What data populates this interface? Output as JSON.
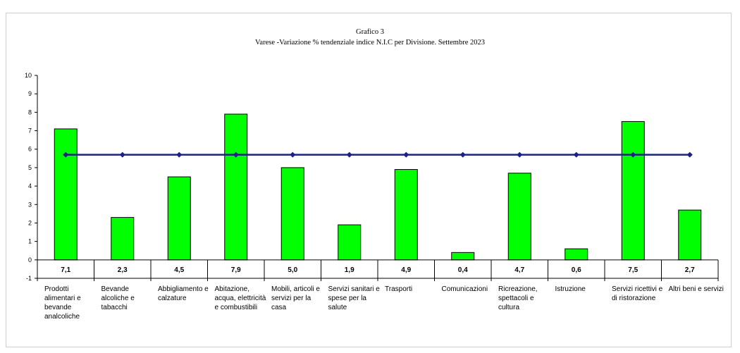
{
  "chart_data": {
    "type": "bar",
    "title": "Grafico 3",
    "subtitle": "Varese -Variazione % tendenziale indice N.I.C per  Divisione. Settembre 2023",
    "categories": [
      "Prodotti alimentari e bevande analcoliche",
      "Bevande alcoliche e tabacchi",
      "Abbigliamento e calzature",
      "Abitazione, acqua, elettricità e combustibili",
      "Mobili, articoli e servizi per la casa",
      "Servizi sanitari e spese per la salute",
      "Trasporti",
      "Comunicazioni",
      "Ricreazione, spettacoli e cultura",
      "Istruzione",
      "Servizi ricettivi e di ristorazione",
      "Altri beni e servizi"
    ],
    "values": [
      7.1,
      2.3,
      4.5,
      7.9,
      5.0,
      1.9,
      4.9,
      0.4,
      4.7,
      0.6,
      7.5,
      2.7
    ],
    "value_labels": [
      "7,1",
      "2,3",
      "4,5",
      "7,9",
      "5,0",
      "1,9",
      "4,9",
      "0,4",
      "4,7",
      "0,6",
      "7,5",
      "2,7"
    ],
    "line": {
      "type": "line",
      "values": [
        5.7,
        5.7,
        5.7,
        5.7,
        5.7,
        5.7,
        5.7,
        5.7,
        5.7,
        5.7,
        5.7,
        5.7
      ],
      "color": "#1a237e",
      "marker": "diamond"
    },
    "bar_color": "#00ff00",
    "bar_edge_color": "#000000",
    "ylim": [
      -1,
      10
    ],
    "yticks": [
      -1,
      0,
      1,
      2,
      3,
      4,
      5,
      6,
      7,
      8,
      9,
      10
    ],
    "grid": false,
    "legend": "none"
  }
}
